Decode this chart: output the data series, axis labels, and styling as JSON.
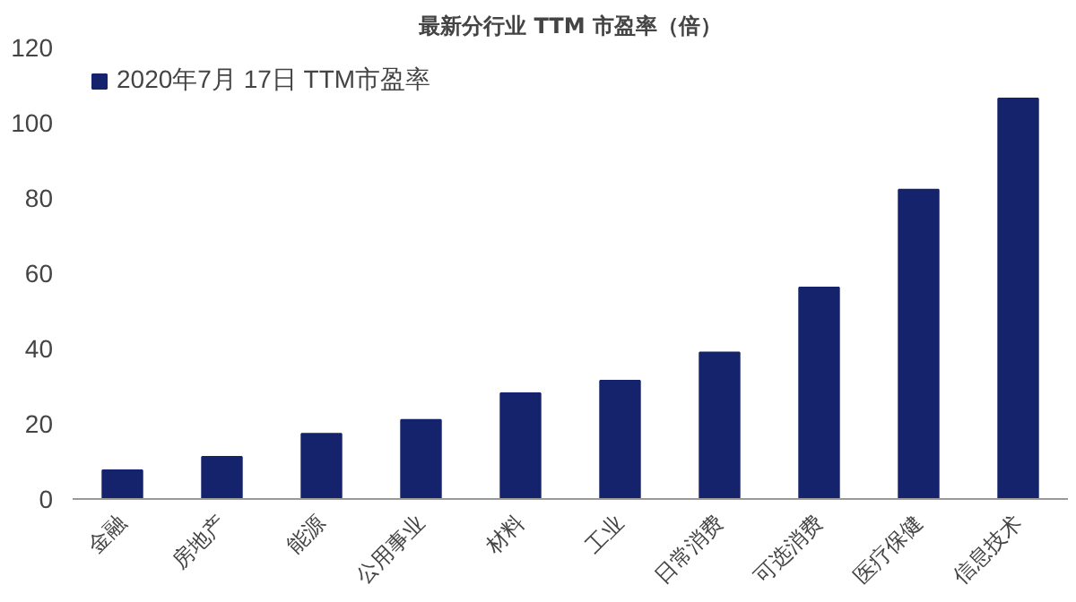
{
  "chart_data": {
    "type": "bar",
    "title": "最新分行业 TTM 市盈率（倍）",
    "categories": [
      "金融",
      "房地产",
      "能源",
      "公用事业",
      "材料",
      "工业",
      "日常消费",
      "可选消费",
      "医疗保健",
      "信息技术"
    ],
    "series": [
      {
        "name": "2020年7月 17日 TTM市盈率",
        "color": "#14236b",
        "values": [
          7.6,
          11.2,
          17.3,
          21,
          28.1,
          31.4,
          38.9,
          56.2,
          82.2,
          106.4
        ]
      }
    ],
    "ylim": [
      0,
      120
    ],
    "yticks": [
      0,
      20,
      40,
      60,
      80,
      100,
      120
    ],
    "grid": false,
    "legend": "top left"
  }
}
